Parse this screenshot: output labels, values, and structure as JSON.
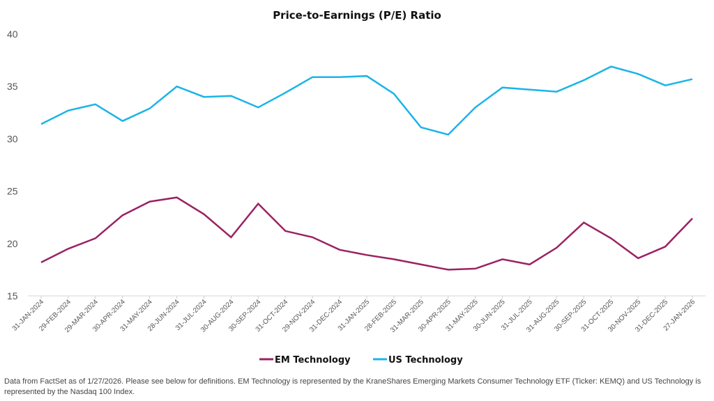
{
  "chart_data": {
    "type": "line",
    "title": "Price-to-Earnings (P/E) Ratio",
    "xlabel": "",
    "ylabel": "",
    "ylim": [
      15,
      40
    ],
    "yticks": [
      15,
      20,
      25,
      30,
      35,
      40
    ],
    "grid": false,
    "legend_position": "bottom-center",
    "x": [
      "31-JAN-2024",
      "29-FEB-2024",
      "29-MAR-2024",
      "30-APR-2024",
      "31-MAY-2024",
      "28-JUN-2024",
      "31-JUL-2024",
      "30-AUG-2024",
      "30-SEP-2024",
      "31-OCT-2024",
      "29-NOV-2024",
      "31-DEC-2024",
      "31-JAN-2025",
      "28-FEB-2025",
      "31-MAR-2025",
      "30-APR-2025",
      "31-MAY-2025",
      "30-JUN-2025",
      "31-JUL-2025",
      "31-AUG-2025",
      "30-SEP-2025",
      "31-OCT-2025",
      "30-NOV-2025",
      "31-DEC-2025",
      "27-JAN-2026"
    ],
    "series": [
      {
        "name": "EM Technology",
        "color": "#9B2263",
        "values": [
          18.2,
          19.5,
          20.5,
          22.7,
          24.0,
          24.4,
          22.8,
          20.6,
          23.8,
          21.2,
          20.6,
          19.4,
          18.9,
          18.5,
          18.0,
          17.5,
          17.6,
          18.5,
          18.0,
          19.6,
          22.0,
          20.5,
          18.6,
          19.7,
          22.4
        ]
      },
      {
        "name": "US Technology",
        "color": "#1AB4E8",
        "values": [
          31.4,
          32.7,
          33.3,
          31.7,
          32.9,
          35.0,
          34.0,
          34.1,
          33.0,
          34.4,
          35.9,
          35.9,
          36.0,
          34.3,
          31.1,
          30.4,
          33.0,
          34.9,
          34.7,
          34.5,
          35.6,
          36.9,
          36.2,
          35.1,
          35.7
        ]
      }
    ]
  },
  "footnote": "Data from FactSet as of 1/27/2026. Please see below for definitions. EM Technology is represented by the KraneShares Emerging Markets Consumer Technology ETF (Ticker: KEMQ) and US Technology is represented by the Nasdaq 100 Index."
}
